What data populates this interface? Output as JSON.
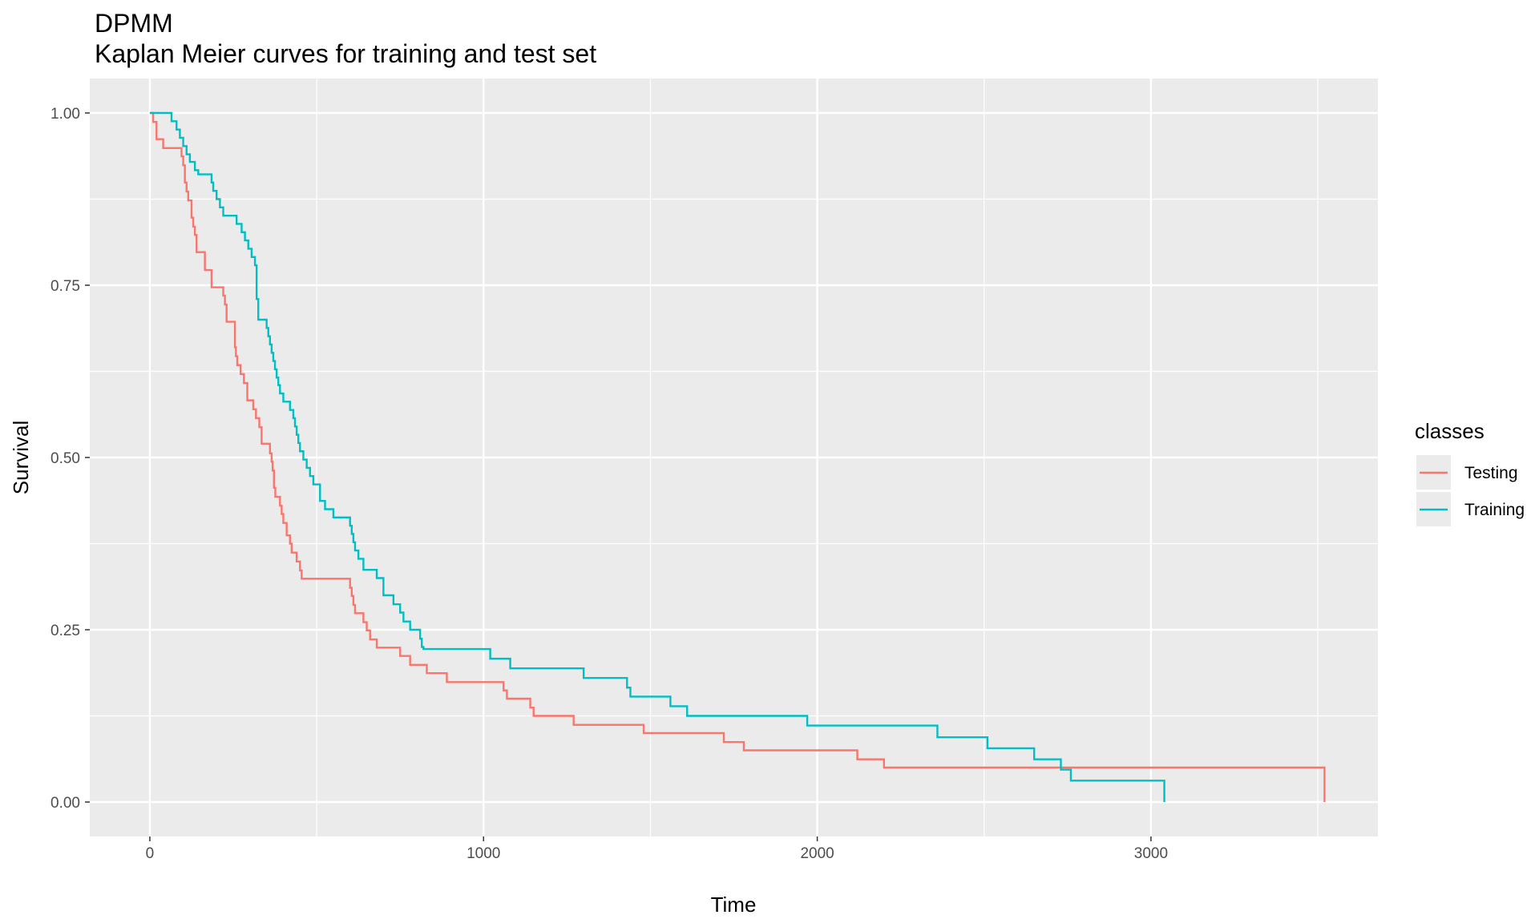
{
  "chart_data": {
    "type": "line",
    "subtype": "step",
    "title": "DPMM",
    "subtitle": "Kaplan Meier curves for training and test set",
    "xlabel": "Time",
    "ylabel": "Survival",
    "xlim": [
      -180,
      3680
    ],
    "ylim": [
      -0.05,
      1.05
    ],
    "x_ticks": [
      0,
      1000,
      2000,
      3000
    ],
    "x_tick_labels": [
      "0",
      "1000",
      "2000",
      "3000"
    ],
    "y_ticks": [
      0,
      0.25,
      0.5,
      0.75,
      1.0
    ],
    "y_tick_labels": [
      "0.00",
      "0.25",
      "0.50",
      "0.75",
      "1.00"
    ],
    "grid": true,
    "legend": {
      "title": "classes",
      "position": "right"
    },
    "series": [
      {
        "name": "Testing",
        "color": "#F8766D",
        "x": [
          0,
          10,
          20,
          40,
          60,
          95,
          100,
          105,
          110,
          115,
          125,
          130,
          135,
          140,
          150,
          165,
          185,
          220,
          225,
          230,
          255,
          258,
          262,
          272,
          282,
          292,
          310,
          318,
          328,
          335,
          360,
          365,
          368,
          372,
          376,
          390,
          395,
          400,
          410,
          420,
          425,
          440,
          450,
          455,
          600,
          605,
          610,
          615,
          640,
          650,
          660,
          680,
          750,
          780,
          830,
          890,
          1060,
          1070,
          1140,
          1150,
          1270,
          1480,
          1720,
          1780,
          2120,
          2200,
          3520
        ],
        "y": [
          1.0,
          0.987,
          0.962,
          0.949,
          0.949,
          0.937,
          0.924,
          0.899,
          0.886,
          0.873,
          0.848,
          0.835,
          0.823,
          0.798,
          0.798,
          0.772,
          0.747,
          0.735,
          0.722,
          0.697,
          0.66,
          0.647,
          0.634,
          0.621,
          0.608,
          0.583,
          0.57,
          0.557,
          0.544,
          0.52,
          0.506,
          0.494,
          0.481,
          0.456,
          0.443,
          0.43,
          0.418,
          0.405,
          0.387,
          0.375,
          0.362,
          0.349,
          0.336,
          0.324,
          0.311,
          0.299,
          0.286,
          0.274,
          0.261,
          0.249,
          0.236,
          0.224,
          0.212,
          0.199,
          0.187,
          0.174,
          0.162,
          0.15,
          0.137,
          0.125,
          0.112,
          0.1,
          0.087,
          0.075,
          0.062,
          0.05,
          0.037
        ],
        "end_x": 3520,
        "end_y": 0.0
      },
      {
        "name": "Training",
        "color": "#00BFC4",
        "x": [
          0,
          65,
          80,
          90,
          100,
          110,
          120,
          135,
          145,
          185,
          190,
          200,
          210,
          220,
          260,
          275,
          285,
          295,
          305,
          315,
          320,
          325,
          350,
          355,
          360,
          365,
          370,
          375,
          380,
          385,
          390,
          400,
          420,
          430,
          435,
          440,
          445,
          450,
          460,
          470,
          480,
          490,
          510,
          525,
          550,
          600,
          605,
          610,
          615,
          625,
          640,
          680,
          700,
          730,
          750,
          760,
          780,
          810,
          815,
          820,
          830,
          1020,
          1080,
          1300,
          1430,
          1440,
          1460,
          1560,
          1610,
          1970,
          2360,
          2510,
          2650,
          2730,
          2760,
          3040
        ],
        "y": [
          1.0,
          0.988,
          0.976,
          0.964,
          0.952,
          0.94,
          0.929,
          0.917,
          0.911,
          0.899,
          0.887,
          0.875,
          0.863,
          0.851,
          0.839,
          0.827,
          0.815,
          0.803,
          0.791,
          0.779,
          0.73,
          0.7,
          0.688,
          0.676,
          0.664,
          0.652,
          0.64,
          0.628,
          0.616,
          0.605,
          0.593,
          0.581,
          0.569,
          0.557,
          0.545,
          0.533,
          0.521,
          0.509,
          0.497,
          0.485,
          0.473,
          0.461,
          0.437,
          0.425,
          0.413,
          0.401,
          0.389,
          0.377,
          0.365,
          0.353,
          0.337,
          0.325,
          0.3,
          0.287,
          0.275,
          0.262,
          0.25,
          0.237,
          0.225,
          0.222,
          0.222,
          0.208,
          0.194,
          0.18,
          0.166,
          0.153,
          0.153,
          0.139,
          0.125,
          0.111,
          0.094,
          0.078,
          0.062,
          0.047,
          0.031,
          0.031
        ],
        "end_x": 3040,
        "end_y": 0.0
      }
    ]
  }
}
